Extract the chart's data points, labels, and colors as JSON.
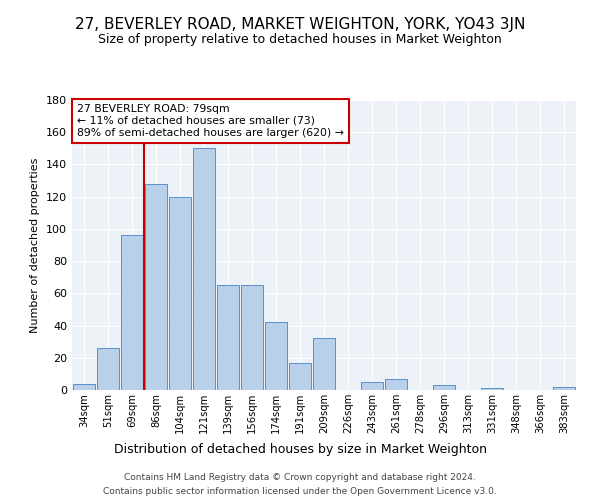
{
  "title": "27, BEVERLEY ROAD, MARKET WEIGHTON, YORK, YO43 3JN",
  "subtitle": "Size of property relative to detached houses in Market Weighton",
  "xlabel": "Distribution of detached houses by size in Market Weighton",
  "ylabel": "Number of detached properties",
  "bar_labels": [
    "34sqm",
    "51sqm",
    "69sqm",
    "86sqm",
    "104sqm",
    "121sqm",
    "139sqm",
    "156sqm",
    "174sqm",
    "191sqm",
    "209sqm",
    "226sqm",
    "243sqm",
    "261sqm",
    "278sqm",
    "296sqm",
    "313sqm",
    "331sqm",
    "348sqm",
    "366sqm",
    "383sqm"
  ],
  "bar_values": [
    4,
    26,
    96,
    128,
    120,
    150,
    65,
    65,
    42,
    17,
    32,
    0,
    5,
    7,
    0,
    3,
    0,
    1,
    0,
    0,
    2
  ],
  "bar_color": "#b8d0ea",
  "bar_edge_color": "#5b8fc9",
  "vline_x": 2.5,
  "vline_color": "#cc0000",
  "annotation_line1": "27 BEVERLEY ROAD: 79sqm",
  "annotation_line2": "← 11% of detached houses are smaller (73)",
  "annotation_line3": "89% of semi-detached houses are larger (620) →",
  "annotation_box_edge_color": "#cc0000",
  "ylim": [
    0,
    180
  ],
  "yticks": [
    0,
    20,
    40,
    60,
    80,
    100,
    120,
    140,
    160,
    180
  ],
  "bg_color": "#edf1f8",
  "title_fontsize": 11,
  "subtitle_fontsize": 9,
  "ylabel_fontsize": 8,
  "xlabel_fontsize": 9,
  "footer_line1": "Contains HM Land Registry data © Crown copyright and database right 2024.",
  "footer_line2": "Contains public sector information licensed under the Open Government Licence v3.0."
}
